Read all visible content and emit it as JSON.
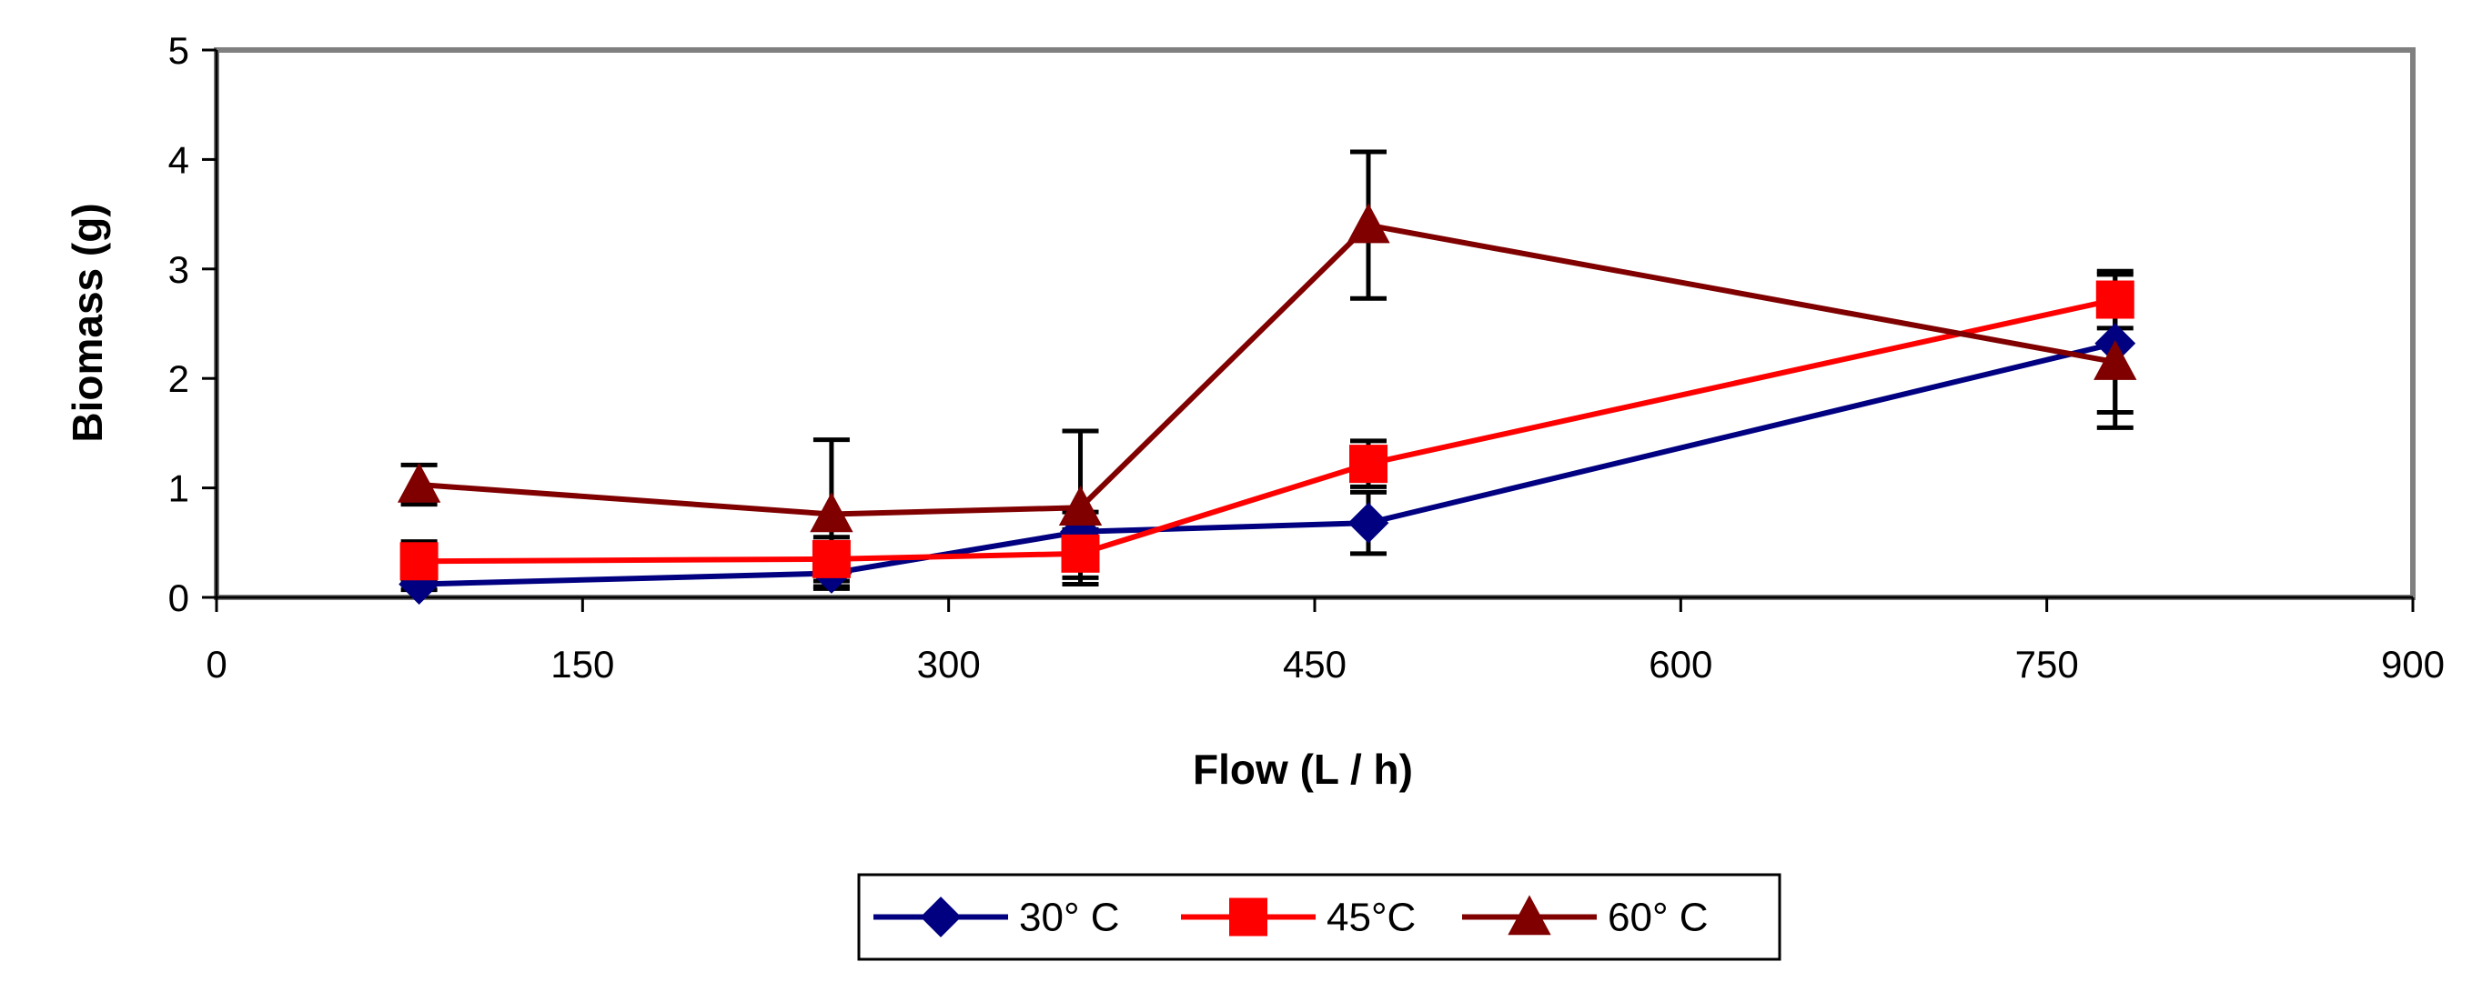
{
  "chart_data": {
    "type": "line",
    "title": "",
    "xlabel": "Flow  (L / h)",
    "ylabel": "Biomass (g)",
    "xlim": [
      0,
      900
    ],
    "ylim": [
      0,
      5
    ],
    "xticks": [
      0,
      150,
      300,
      450,
      600,
      750,
      900
    ],
    "yticks": [
      0,
      1,
      2,
      3,
      4,
      5
    ],
    "grid": false,
    "legend_position": "bottom",
    "series": [
      {
        "name": "30° C",
        "color": "#000080",
        "marker": "diamond",
        "x": [
          83,
          252,
          354,
          472,
          778
        ],
        "y": [
          0.12,
          0.22,
          0.6,
          0.68,
          2.32
        ],
        "error": [
          0.05,
          0.12,
          0.18,
          0.28,
          0.63
        ]
      },
      {
        "name": "45°C",
        "color": "#FF0000",
        "marker": "square",
        "x": [
          83,
          252,
          354,
          472,
          778
        ],
        "y": [
          0.33,
          0.35,
          0.4,
          1.22,
          2.72
        ],
        "error": [
          0.18,
          0.2,
          0.22,
          0.21,
          0.26
        ]
      },
      {
        "name": "60° C",
        "color": "#800000",
        "marker": "triangle",
        "x": [
          83,
          252,
          354,
          472,
          778
        ],
        "y": [
          1.03,
          0.76,
          0.82,
          3.4,
          2.15
        ],
        "error": [
          0.18,
          0.68,
          0.7,
          0.67,
          0.6
        ]
      }
    ]
  }
}
